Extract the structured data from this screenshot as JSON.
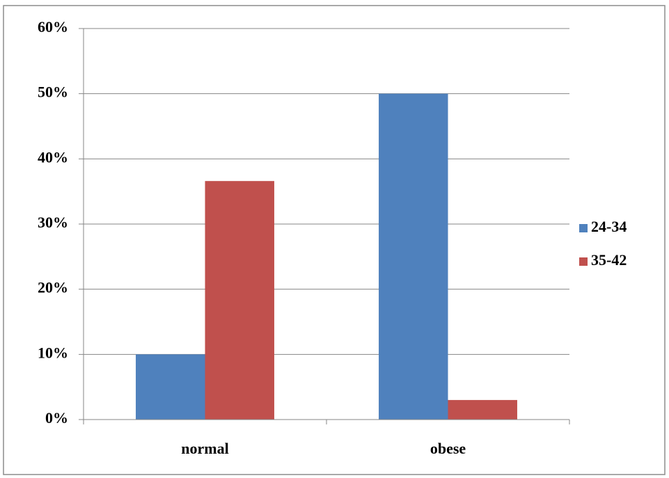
{
  "chart_data": {
    "type": "bar",
    "categories": [
      "normal",
      "obese"
    ],
    "series": [
      {
        "name": "24-34",
        "color": "#4f81bd",
        "values": [
          10,
          50
        ]
      },
      {
        "name": "35-42",
        "color": "#c0504d",
        "values": [
          36.6,
          3
        ]
      }
    ],
    "ylim": [
      0,
      60
    ],
    "yticks": [
      {
        "value": 0,
        "label": "0%"
      },
      {
        "value": 10,
        "label": "10%"
      },
      {
        "value": 20,
        "label": "20%"
      },
      {
        "value": 30,
        "label": "30%"
      },
      {
        "value": 40,
        "label": "40%"
      },
      {
        "value": 50,
        "label": "50%"
      },
      {
        "value": 60,
        "label": "60%"
      }
    ],
    "grid": true,
    "legend": "right"
  }
}
